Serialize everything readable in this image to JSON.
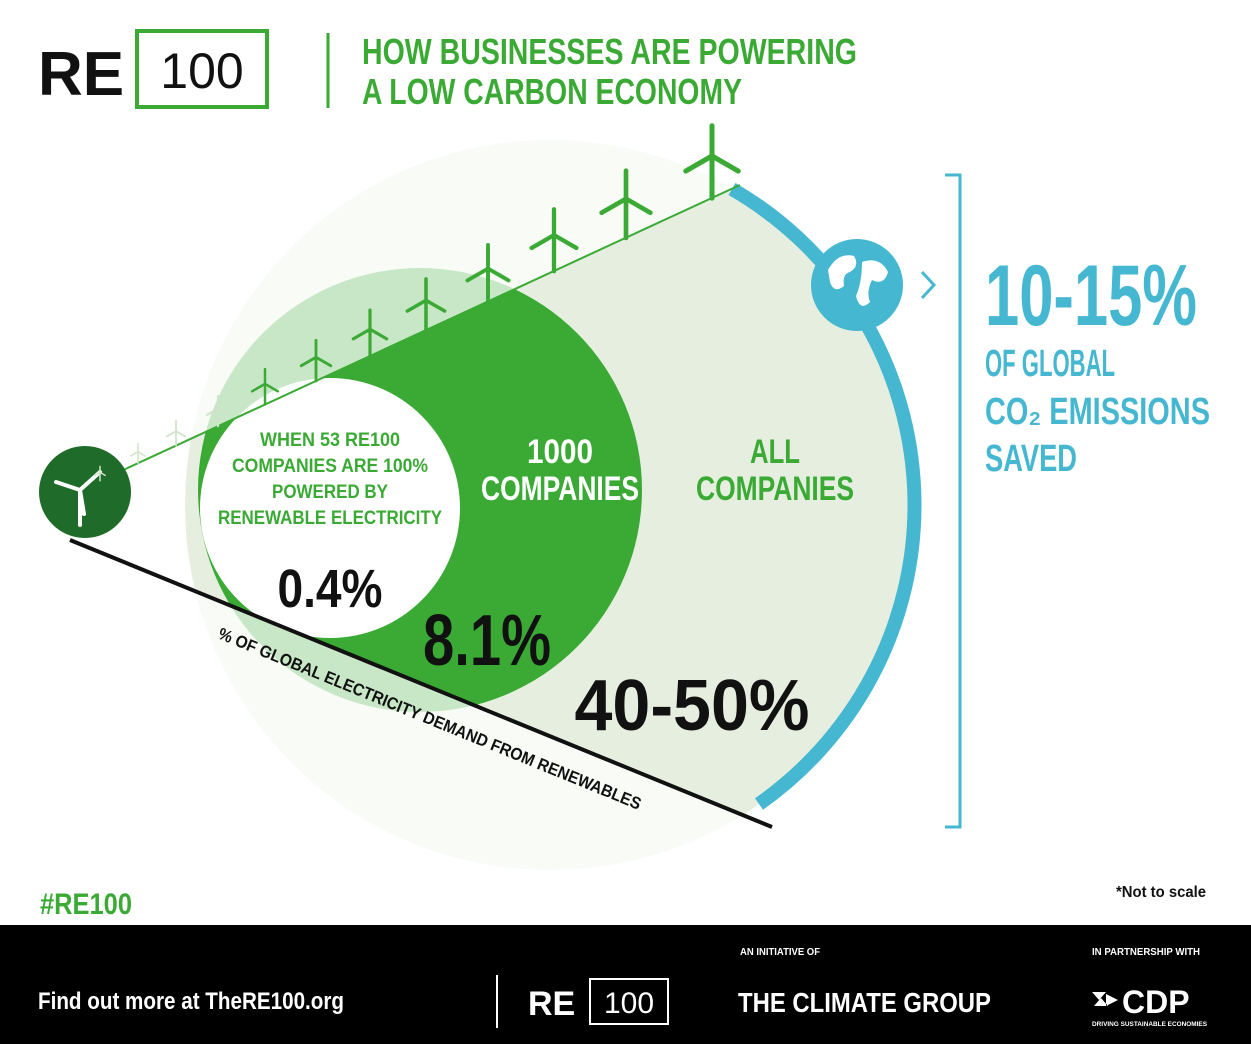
{
  "logo": {
    "re": "RE",
    "num": "100"
  },
  "header": {
    "title_lines": [
      "HOW BUSINESSES ARE POWERING",
      "A LOW CARBON ECONOMY"
    ]
  },
  "diagram": {
    "inner": {
      "lines": [
        "WHEN 53 RE100",
        "COMPANIES ARE 100%",
        "POWERED BY",
        "RENEWABLE ELECTRICITY"
      ],
      "value": "0.4%"
    },
    "middle": {
      "lines": [
        "1000",
        "COMPANIES"
      ],
      "value": "8.1%"
    },
    "outer": {
      "lines": [
        "ALL",
        "COMPANIES"
      ],
      "value": "40-50%"
    },
    "axis_label": "% OF GLOBAL ELECTRICITY DEMAND FROM RENEWABLES",
    "savings": {
      "value": "10-15%",
      "lines": [
        "OF GLOBAL",
        "CO₂ EMISSIONS",
        "SAVED"
      ]
    }
  },
  "hashtag": "#RE100",
  "note": "*Not to scale",
  "footer": {
    "link": "Find out more at TheRE100.org",
    "logo": {
      "re": "RE",
      "num": "100"
    },
    "initiative_label": "AN INITIATIVE OF",
    "initiative": "THE CLIMATE GROUP",
    "partner_label": "IN PARTNERSHIP WITH",
    "partner": "CDP",
    "partner_tagline": "DRIVING SUSTAINABLE ECONOMIES"
  }
}
